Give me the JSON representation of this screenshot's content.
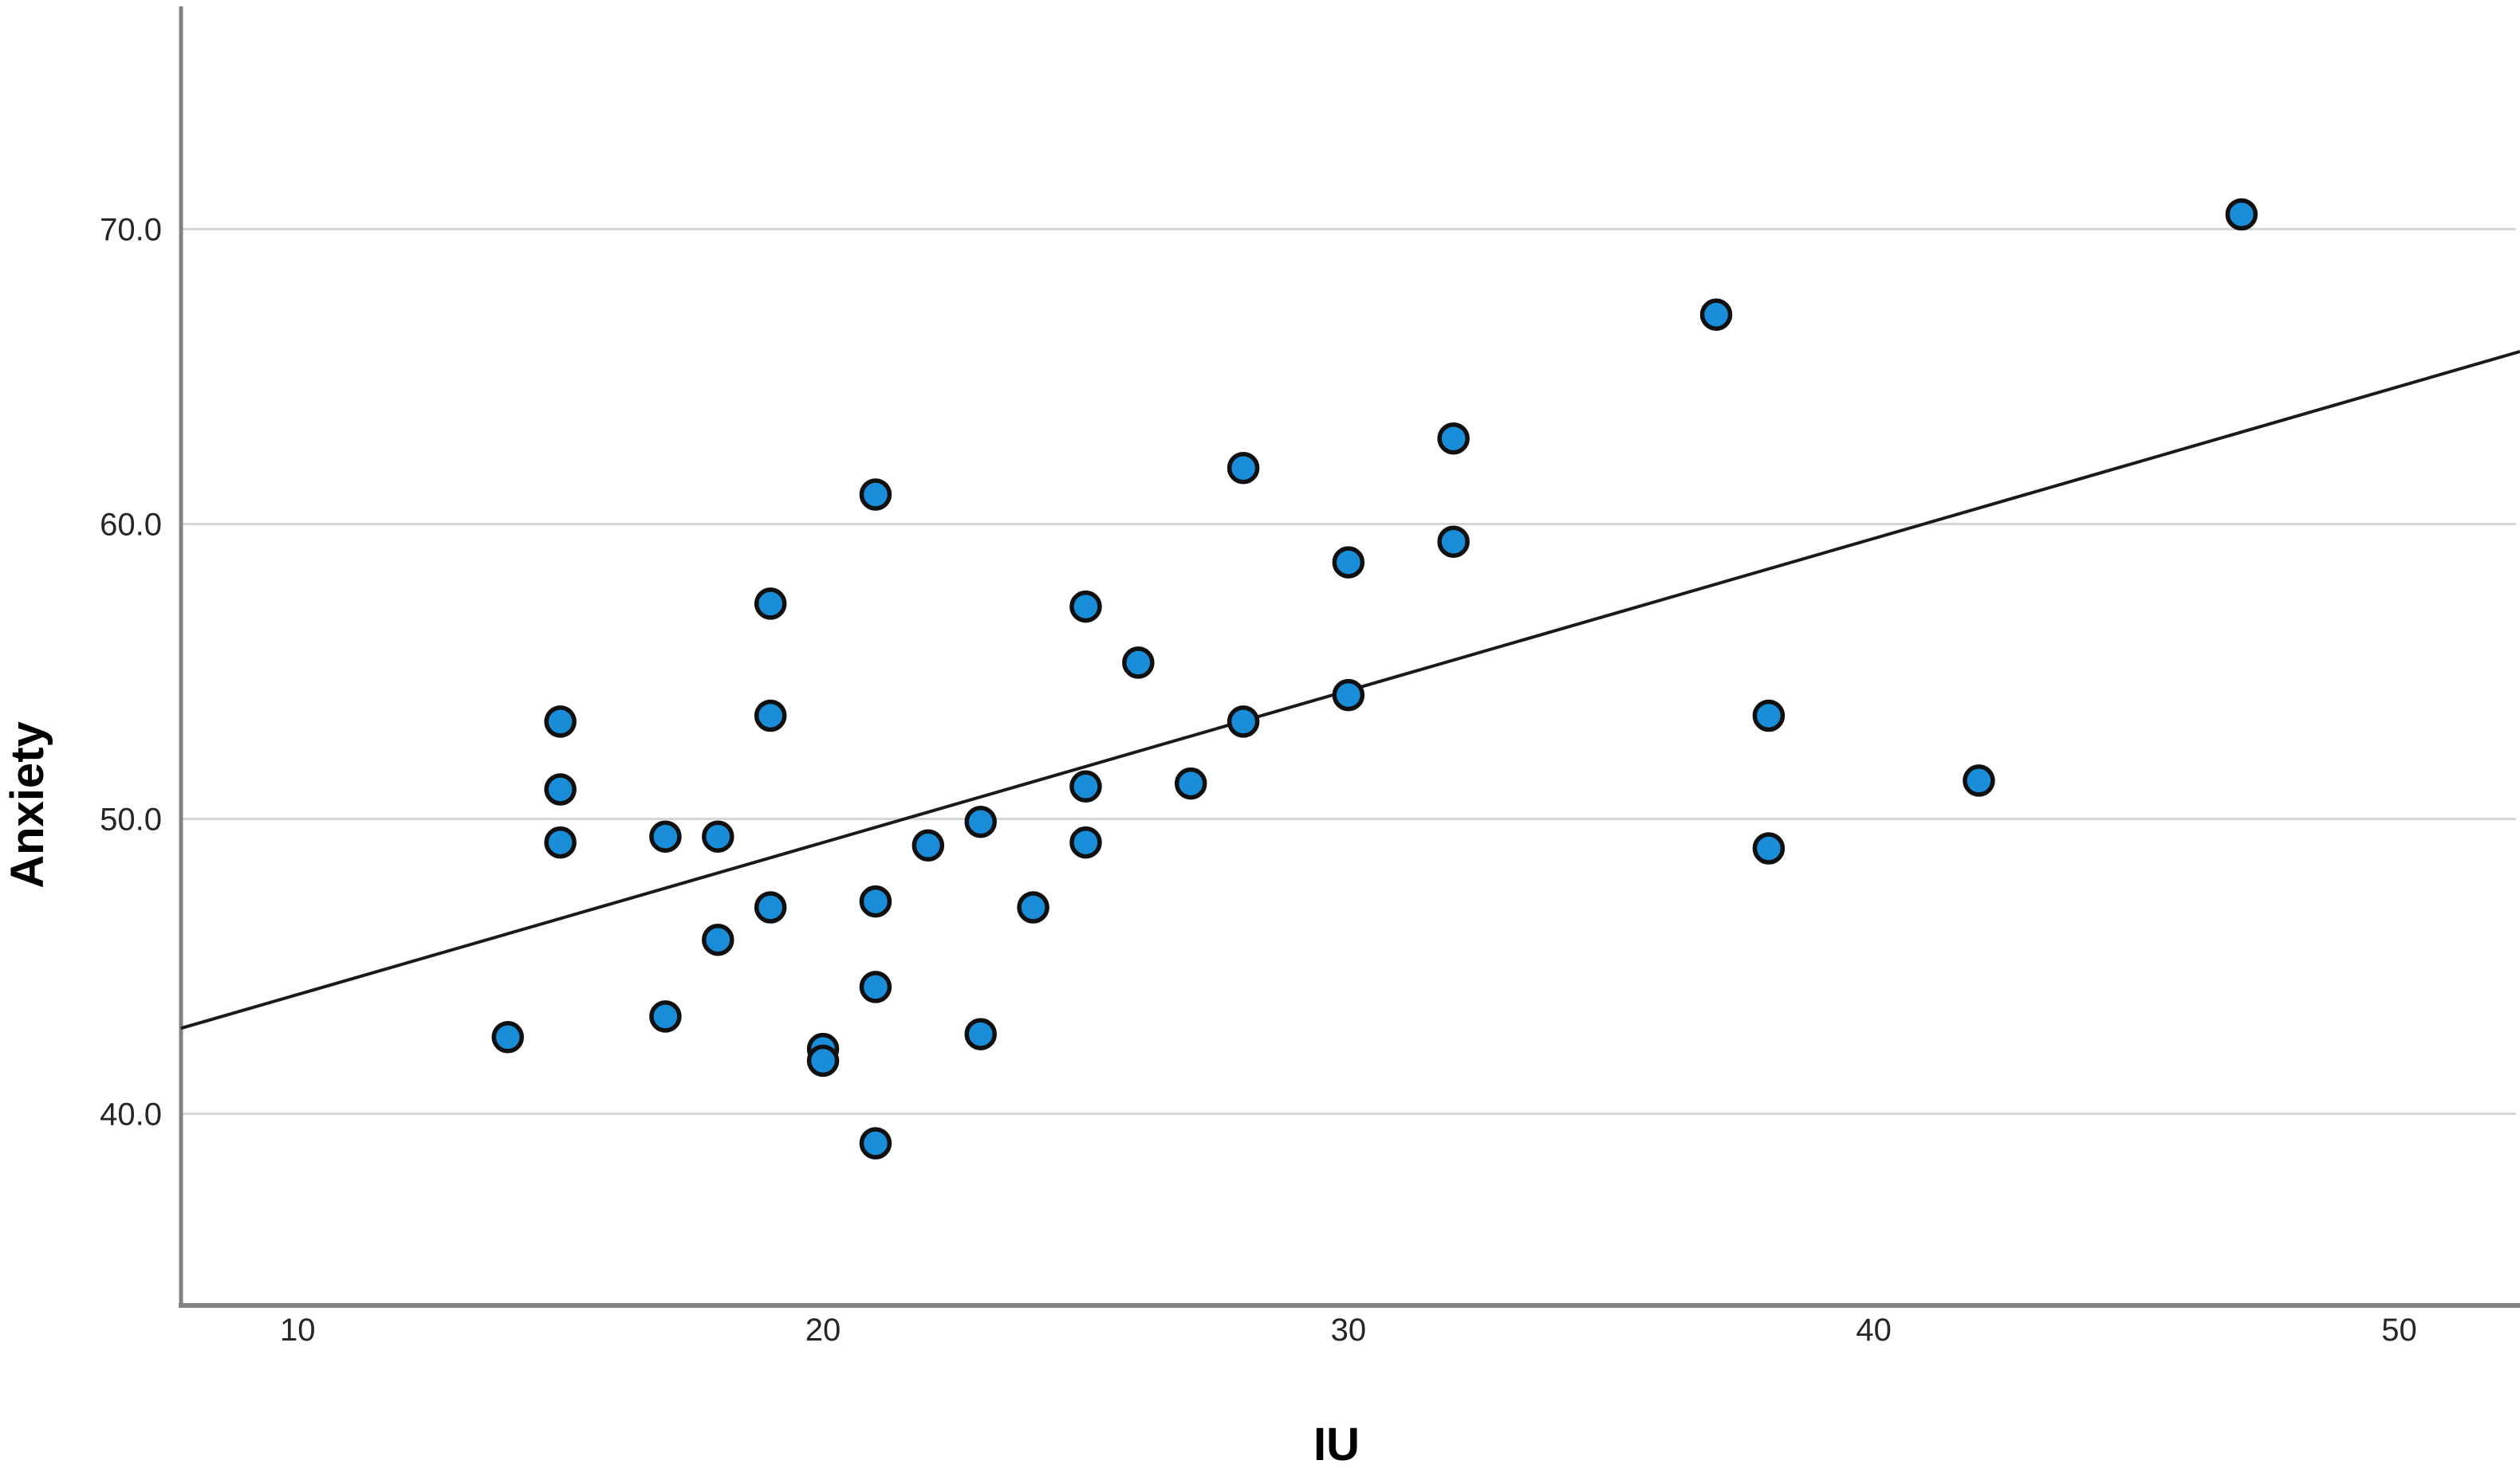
{
  "chart_data": {
    "type": "scatter",
    "title": "",
    "xlabel": "IU",
    "ylabel": "Anxiety",
    "xlim": [
      7.78,
      52.3
    ],
    "ylim": [
      33.5,
      77.5
    ],
    "grid": "horizontal-only",
    "gridline_color": "#d6d6d6",
    "axis_line_color": "#828282",
    "marker_fill": "#1A8DD8",
    "marker_stroke": "#101010",
    "fit_line_color": "#1a1a1a",
    "x_ticks": [
      {
        "value": 10,
        "label": "10"
      },
      {
        "value": 20,
        "label": "20"
      },
      {
        "value": 30,
        "label": "30"
      },
      {
        "value": 40,
        "label": "40"
      },
      {
        "value": 50,
        "label": "50"
      }
    ],
    "y_ticks": [
      {
        "value": 70,
        "label": "70.0"
      },
      {
        "value": 60,
        "label": "60.0"
      },
      {
        "value": 50,
        "label": "50.0"
      },
      {
        "value": 40,
        "label": "40.0"
      }
    ],
    "points": [
      [
        14,
        42.6
      ],
      [
        15,
        53.3
      ],
      [
        15,
        51.0
      ],
      [
        15,
        49.2
      ],
      [
        17,
        49.4
      ],
      [
        17,
        43.3
      ],
      [
        18,
        49.4
      ],
      [
        18,
        45.9
      ],
      [
        19,
        57.3
      ],
      [
        19,
        53.5
      ],
      [
        19,
        47.0
      ],
      [
        20,
        42.2
      ],
      [
        20,
        41.8
      ],
      [
        21,
        61.0
      ],
      [
        21,
        47.2
      ],
      [
        21,
        44.3
      ],
      [
        21,
        39.0
      ],
      [
        22,
        49.1
      ],
      [
        23,
        49.9
      ],
      [
        23,
        42.7
      ],
      [
        24,
        47.0
      ],
      [
        25,
        57.2
      ],
      [
        25,
        51.1
      ],
      [
        25,
        49.2
      ],
      [
        26,
        55.3
      ],
      [
        27,
        51.2
      ],
      [
        28,
        61.9
      ],
      [
        28,
        53.3
      ],
      [
        30,
        58.7
      ],
      [
        30,
        54.2
      ],
      [
        32,
        62.9
      ],
      [
        32,
        59.4
      ],
      [
        37,
        67.1
      ],
      [
        38,
        53.5
      ],
      [
        38,
        49.0
      ],
      [
        42,
        51.3
      ],
      [
        47,
        70.5
      ]
    ],
    "fit_line": {
      "x1": 7.78,
      "y1": 42.9,
      "x2": 52.3,
      "y2": 65.85
    }
  }
}
